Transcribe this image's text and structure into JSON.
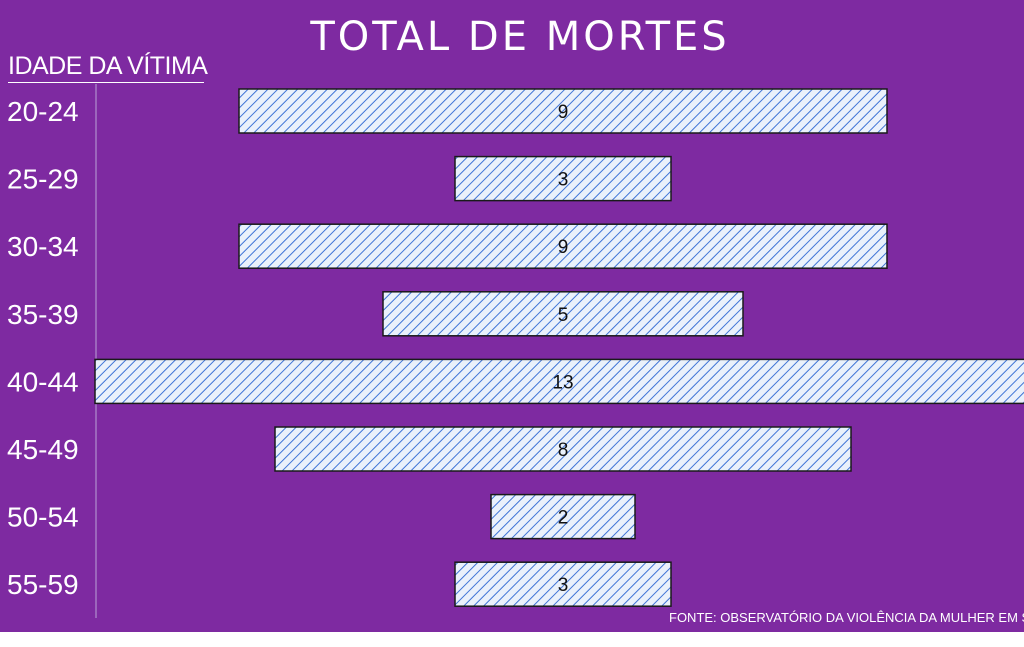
{
  "chart_data": {
    "type": "bar",
    "orientation": "horizontal",
    "title": "TOTAL DE MORTES",
    "ylabel": "IDADE DA VÍTIMA",
    "categories": [
      "20-24",
      "25-29",
      "30-34",
      "35-39",
      "40-44",
      "45-49",
      "50-54",
      "55-59"
    ],
    "values": [
      9,
      3,
      9,
      5,
      13,
      8,
      2,
      3
    ],
    "data_labels": [
      "9",
      "3",
      "9",
      "5",
      "13",
      "8",
      "2",
      "3"
    ],
    "xlim": [
      0,
      13
    ],
    "bar_alignment": "centered",
    "grid": false,
    "legend": "none",
    "colors": {
      "background": "#7e2aa1",
      "bar_fill": "#eaf1fb",
      "bar_hatch": "#3f74d6",
      "bar_border": "#1a1a1a",
      "text": "#ffffff",
      "label_text": "#111111"
    }
  },
  "source": "FONTE: OBSERVATÓRIO DA VIOLÊNCIA DA MULHER EM SC"
}
